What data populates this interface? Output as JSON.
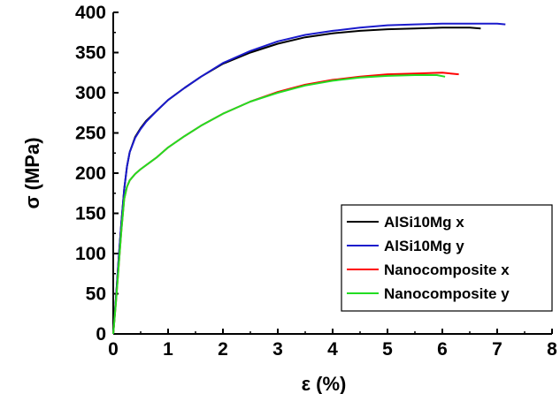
{
  "chart_data": {
    "type": "line",
    "xlabel": "ε (%)",
    "ylabel": "σ (MPa)",
    "xlim": [
      0,
      8
    ],
    "ylim": [
      0,
      400
    ],
    "xticks": [
      0,
      1,
      2,
      3,
      4,
      5,
      6,
      7,
      8
    ],
    "yticks": [
      0,
      50,
      100,
      150,
      200,
      250,
      300,
      350,
      400
    ],
    "grid": false,
    "legend_position": "bottom-right",
    "series": [
      {
        "name": "AlSi10Mg x",
        "color": "#000000",
        "x": [
          0,
          0.05,
          0.1,
          0.15,
          0.2,
          0.25,
          0.3,
          0.4,
          0.5,
          0.6,
          0.8,
          1.0,
          1.3,
          1.6,
          2.0,
          2.5,
          3.0,
          3.5,
          4.0,
          4.5,
          5.0,
          5.5,
          6.0,
          6.5,
          6.7
        ],
        "y": [
          0,
          45,
          95,
          140,
          180,
          208,
          226,
          245,
          256,
          265,
          278,
          291,
          306,
          320,
          336,
          350,
          361,
          369,
          374,
          377,
          379,
          380,
          381,
          381,
          380
        ]
      },
      {
        "name": "AlSi10Mg y",
        "color": "#1a1acc",
        "x": [
          0,
          0.05,
          0.1,
          0.15,
          0.2,
          0.25,
          0.3,
          0.4,
          0.5,
          0.6,
          0.8,
          1.0,
          1.3,
          1.6,
          2.0,
          2.5,
          3.0,
          3.5,
          4.0,
          4.5,
          5.0,
          5.5,
          6.0,
          6.5,
          7.0,
          7.15
        ],
        "y": [
          0,
          45,
          95,
          140,
          180,
          208,
          226,
          244,
          255,
          264,
          278,
          291,
          306,
          320,
          337,
          352,
          364,
          372,
          377,
          381,
          384,
          385,
          386,
          386,
          386,
          385
        ]
      },
      {
        "name": "Nanocomposite x",
        "color": "#ff0000",
        "x": [
          0,
          0.05,
          0.1,
          0.15,
          0.2,
          0.25,
          0.3,
          0.4,
          0.5,
          0.6,
          0.8,
          1.0,
          1.3,
          1.6,
          2.0,
          2.5,
          3.0,
          3.5,
          4.0,
          4.5,
          5.0,
          5.5,
          6.0,
          6.3
        ],
        "y": [
          0,
          40,
          85,
          130,
          168,
          183,
          191,
          199,
          205,
          210,
          220,
          232,
          246,
          259,
          274,
          289,
          301,
          310,
          316,
          320,
          323,
          324,
          325,
          323
        ]
      },
      {
        "name": "Nanocomposite y",
        "color": "#22dd22",
        "x": [
          0,
          0.05,
          0.1,
          0.15,
          0.2,
          0.25,
          0.3,
          0.4,
          0.5,
          0.6,
          0.8,
          1.0,
          1.3,
          1.6,
          2.0,
          2.5,
          3.0,
          3.5,
          4.0,
          4.5,
          5.0,
          5.5,
          5.9,
          6.05
        ],
        "y": [
          0,
          40,
          85,
          130,
          168,
          183,
          191,
          199,
          205,
          210,
          220,
          232,
          246,
          259,
          274,
          289,
          300,
          309,
          315,
          319,
          321,
          322,
          322,
          320
        ]
      }
    ]
  }
}
